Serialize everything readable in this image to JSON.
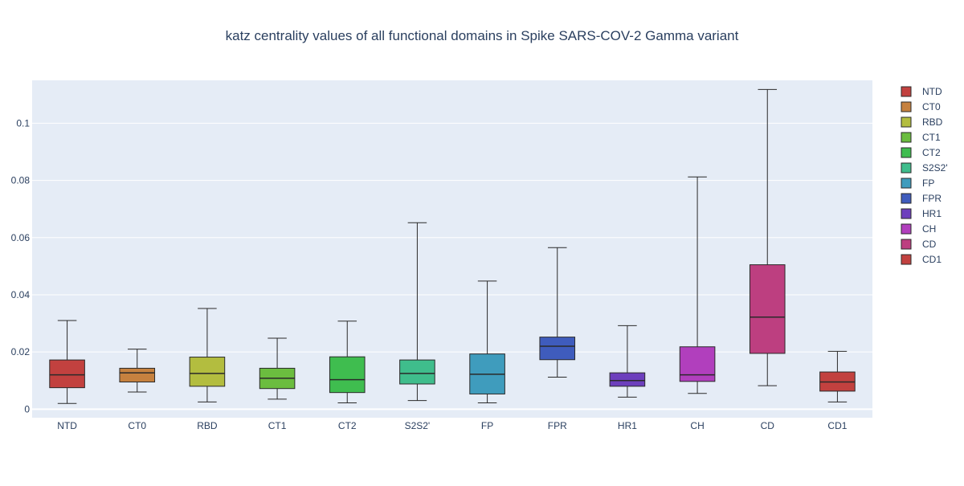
{
  "chart_data": {
    "type": "box",
    "title": "katz centrality values of all functional domains in Spike SARS-COV-2 Gamma variant",
    "xlabel": "",
    "ylabel": "",
    "ylim": [
      -0.003,
      0.115
    ],
    "yticks": [
      0,
      0.02,
      0.04,
      0.06,
      0.08,
      0.1
    ],
    "ytick_labels": [
      "0",
      "0.02",
      "0.04",
      "0.06",
      "0.08",
      "0.1"
    ],
    "grid": true,
    "legend_position": "right",
    "series": [
      {
        "name": "NTD",
        "color": "#c2413f",
        "min": 0.002,
        "q1": 0.0075,
        "median": 0.012,
        "q3": 0.0172,
        "max": 0.031
      },
      {
        "name": "CT0",
        "color": "#c6813f",
        "min": 0.006,
        "q1": 0.0095,
        "median": 0.0127,
        "q3": 0.0143,
        "max": 0.021
      },
      {
        "name": "RBD",
        "color": "#b3bd3f",
        "min": 0.0025,
        "q1": 0.008,
        "median": 0.0125,
        "q3": 0.0182,
        "max": 0.0352
      },
      {
        "name": "CT1",
        "color": "#6bbd3f",
        "min": 0.0035,
        "q1": 0.0072,
        "median": 0.0108,
        "q3": 0.0143,
        "max": 0.0248
      },
      {
        "name": "CT2",
        "color": "#3fbd4f",
        "min": 0.0022,
        "q1": 0.0058,
        "median": 0.0103,
        "q3": 0.0183,
        "max": 0.0308
      },
      {
        "name": "S2S2'",
        "color": "#3fbd8c",
        "min": 0.003,
        "q1": 0.0088,
        "median": 0.0125,
        "q3": 0.0172,
        "max": 0.0652
      },
      {
        "name": "FP",
        "color": "#3f9cbd",
        "min": 0.0022,
        "q1": 0.0053,
        "median": 0.0122,
        "q3": 0.0193,
        "max": 0.0448
      },
      {
        "name": "FPR",
        "color": "#3f5cbd",
        "min": 0.0112,
        "q1": 0.0173,
        "median": 0.022,
        "q3": 0.0252,
        "max": 0.0565
      },
      {
        "name": "HR1",
        "color": "#6d3fbd",
        "min": 0.0042,
        "q1": 0.008,
        "median": 0.01,
        "q3": 0.0127,
        "max": 0.0292
      },
      {
        "name": "CH",
        "color": "#b13fbd",
        "min": 0.0055,
        "q1": 0.0097,
        "median": 0.012,
        "q3": 0.0218,
        "max": 0.0812
      },
      {
        "name": "CD",
        "color": "#bd3f80",
        "min": 0.0082,
        "q1": 0.0195,
        "median": 0.0322,
        "q3": 0.0505,
        "max": 0.1118
      },
      {
        "name": "CD1",
        "color": "#c2413f",
        "min": 0.0025,
        "q1": 0.0063,
        "median": 0.0095,
        "q3": 0.013,
        "max": 0.0202
      }
    ]
  }
}
